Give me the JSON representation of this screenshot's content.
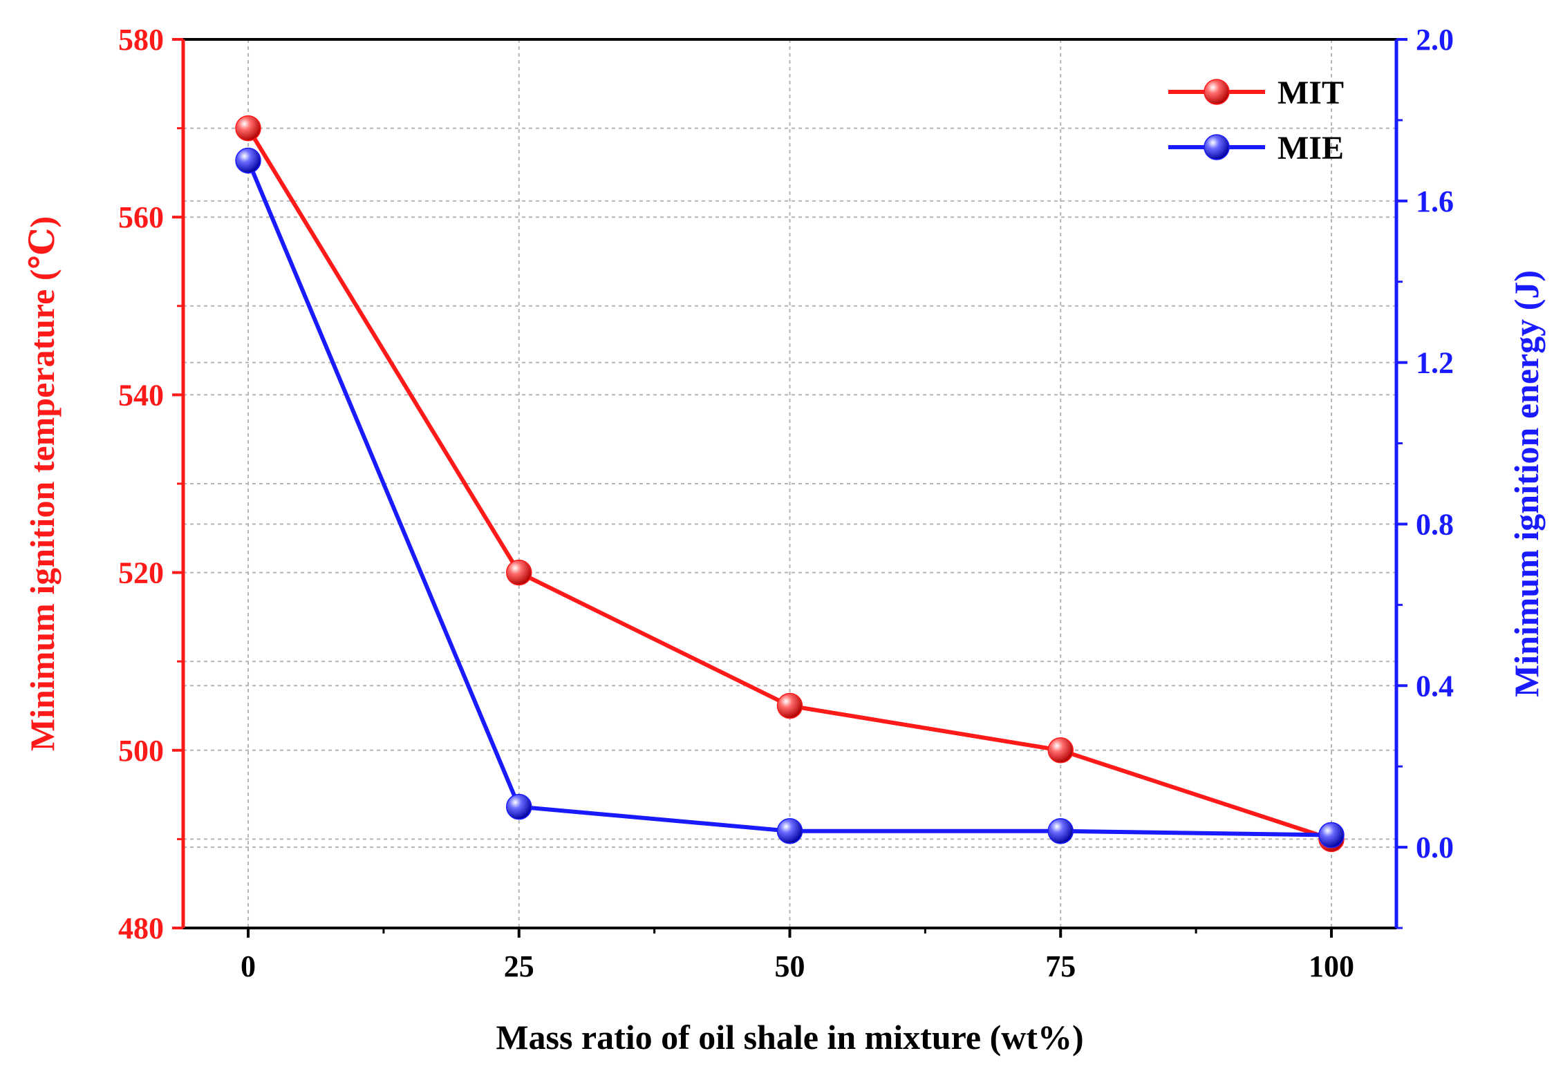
{
  "chart_data": {
    "type": "line",
    "x_values": [
      0,
      25,
      50,
      75,
      100
    ],
    "xlabel": "Mass ratio of oil shale in mixture (wt%)",
    "xlim": [
      -6,
      106
    ],
    "x_ticks": [
      0,
      25,
      50,
      75,
      100
    ],
    "x_tick_labels": [
      "0",
      "25",
      "50",
      "75",
      "100"
    ],
    "y_left": {
      "label": "Minimum ignition temperature (℃)",
      "lim": [
        480,
        580
      ],
      "ticks": [
        480,
        500,
        520,
        540,
        560,
        580
      ],
      "tick_labels": [
        "480",
        "500",
        "520",
        "540",
        "560",
        "580"
      ],
      "color": "#ff1a1a"
    },
    "y_right": {
      "label": "Minimum ignition energy (J)",
      "lim": [
        -0.2,
        2.0
      ],
      "ticks": [
        0.0,
        0.4,
        0.8,
        1.2,
        1.6,
        2.0
      ],
      "tick_labels": [
        "0.0",
        "0.4",
        "0.8",
        "1.2",
        "1.6",
        "2.0"
      ],
      "color": "#1a1aff"
    },
    "series": [
      {
        "name": "MIT",
        "axis": "left",
        "color": "#ff1a1a",
        "values": [
          570,
          520,
          505,
          500,
          490
        ]
      },
      {
        "name": "MIE",
        "axis": "right",
        "color": "#1a1aff",
        "values": [
          1.7,
          0.1,
          0.04,
          0.04,
          0.03
        ]
      }
    ],
    "grid": true,
    "legend_position": "top-right"
  }
}
